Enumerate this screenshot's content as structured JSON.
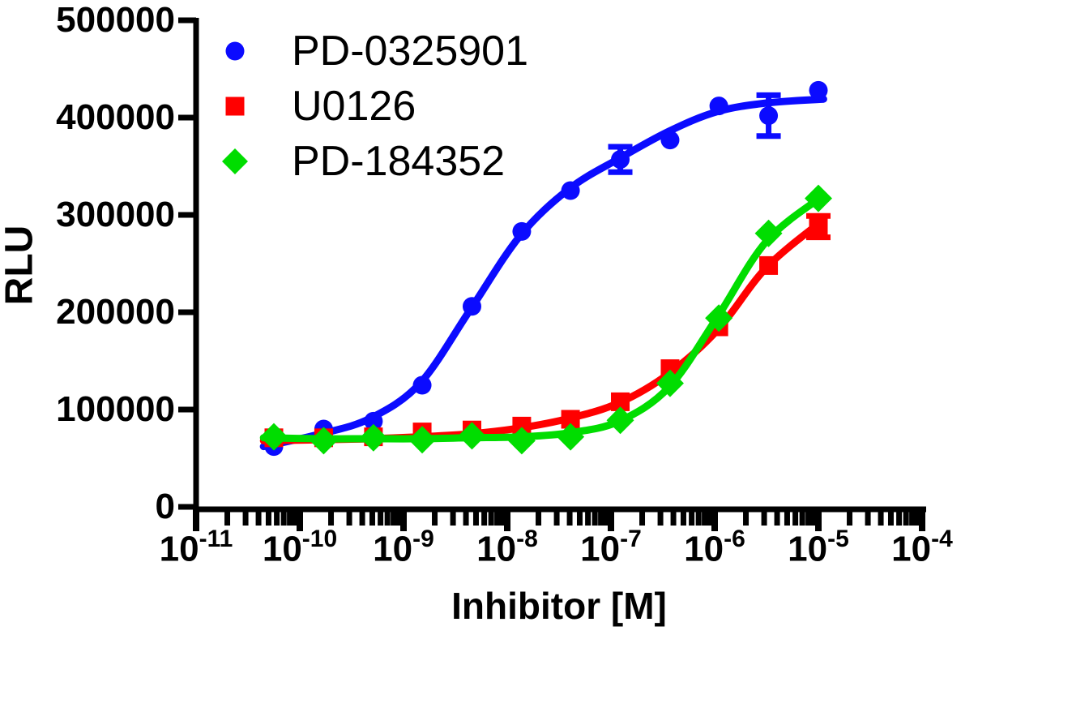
{
  "figure": {
    "background": "#ffffff",
    "axis_color": "#000000"
  },
  "chart_data": {
    "type": "scatter",
    "subtype": "dose-response-sigmoidal-fit",
    "title": "",
    "xlabel": "Inhibitor [M]",
    "ylabel": "RLU",
    "x_scale": "log10",
    "xlim_log10": [
      -11,
      -4
    ],
    "ylim": [
      0,
      500000
    ],
    "grid": false,
    "legend_position": "inside-top-left",
    "y_ticks": {
      "values": [
        0,
        100000,
        200000,
        300000,
        400000,
        500000
      ],
      "labels": [
        "0",
        "100000",
        "200000",
        "300000",
        "400000",
        "500000"
      ]
    },
    "x_ticks": {
      "base": "10",
      "exponents": [
        "-11",
        "-10",
        "-9",
        "-8",
        "-7",
        "-6",
        "-5",
        "-4"
      ],
      "minor_ticks": "log-decade-2-to-9"
    },
    "concentrations_M": [
      5.6e-11,
      1.7e-10,
      5.1e-10,
      1.5e-09,
      4.6e-09,
      1.4e-08,
      4.1e-08,
      1.2e-07,
      3.7e-07,
      1.1e-06,
      3.3e-06,
      1e-05
    ],
    "log10_x": [
      -10.25,
      -9.77,
      -9.29,
      -8.82,
      -8.34,
      -7.86,
      -7.39,
      -6.91,
      -6.43,
      -5.96,
      -5.48,
      -5.0
    ],
    "series": [
      {
        "name": "PD-0325901",
        "color": "#0b0bff",
        "marker": "circle",
        "values": [
          62000,
          80000,
          88000,
          125000,
          206000,
          283000,
          325000,
          357000,
          377000,
          412000,
          402000,
          428000
        ],
        "errors": [
          0,
          0,
          0,
          0,
          0,
          0,
          0,
          13000,
          0,
          0,
          21000,
          0
        ],
        "fit_curve": [
          [
            -10.35,
            62000
          ],
          [
            -9.8,
            75000
          ],
          [
            -9.32,
            91000
          ],
          [
            -8.84,
            127000
          ],
          [
            -8.36,
            202000
          ],
          [
            -7.88,
            278000
          ],
          [
            -7.4,
            327000
          ],
          [
            -6.92,
            358000
          ],
          [
            -6.44,
            386000
          ],
          [
            -5.98,
            406000
          ],
          [
            -5.5,
            415000
          ],
          [
            -4.95,
            419000
          ]
        ]
      },
      {
        "name": "U0126",
        "color": "#ff0000",
        "marker": "square",
        "values": [
          71000,
          71000,
          72000,
          77000,
          79000,
          83000,
          90000,
          108000,
          142000,
          185000,
          248000,
          288000
        ],
        "errors": [
          0,
          0,
          0,
          0,
          0,
          0,
          0,
          0,
          0,
          0,
          0,
          11000
        ],
        "fit_curve": [
          [
            -10.35,
            68000
          ],
          [
            -9.8,
            69000
          ],
          [
            -9.32,
            70000
          ],
          [
            -8.84,
            72000
          ],
          [
            -8.36,
            75000
          ],
          [
            -7.88,
            81000
          ],
          [
            -7.4,
            91000
          ],
          [
            -6.92,
            107000
          ],
          [
            -6.44,
            137000
          ],
          [
            -5.97,
            182000
          ],
          [
            -5.5,
            246000
          ],
          [
            -4.95,
            295000
          ]
        ]
      },
      {
        "name": "PD-184352",
        "color": "#00dd00",
        "marker": "diamond",
        "values": [
          72000,
          68000,
          71000,
          69000,
          73000,
          68000,
          72000,
          89000,
          127000,
          194000,
          281000,
          317000
        ],
        "errors": [
          0,
          0,
          0,
          0,
          0,
          0,
          0,
          0,
          0,
          0,
          0,
          0
        ],
        "fit_curve": [
          [
            -10.35,
            71000
          ],
          [
            -9.8,
            70000
          ],
          [
            -9.32,
            70000
          ],
          [
            -8.84,
            70000
          ],
          [
            -8.36,
            71000
          ],
          [
            -7.88,
            72000
          ],
          [
            -7.4,
            76000
          ],
          [
            -6.92,
            88000
          ],
          [
            -6.44,
            123000
          ],
          [
            -5.98,
            194000
          ],
          [
            -5.5,
            273000
          ],
          [
            -4.95,
            320000
          ]
        ]
      }
    ]
  }
}
